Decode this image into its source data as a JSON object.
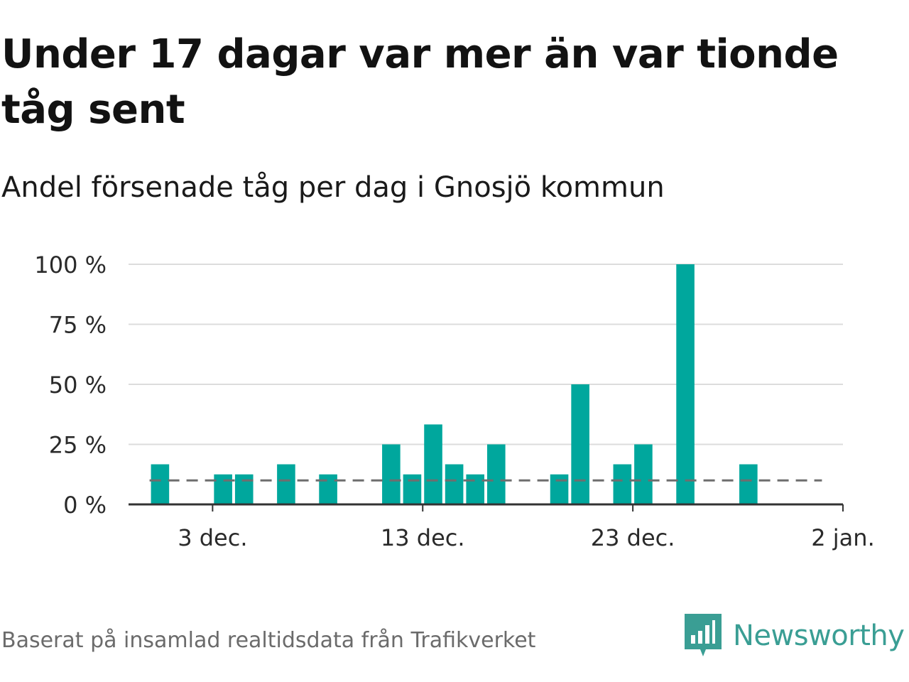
{
  "title": "Under 17 dagar var mer än var tionde tåg sent",
  "subtitle": "Andel försenade tåg per dag i Gnosjö kommun",
  "footer": {
    "source": "Baserat på insamlad realtidsdata från Trafikverket",
    "brand": "Newsworthy"
  },
  "colors": {
    "bar": "#00a79d",
    "reference_line": "#6e6e6e",
    "grid": "#dcdcdc",
    "axis": "#333333",
    "brand": "#3a9e94"
  },
  "icons": {
    "brand_logo": "newsworthy-logo-icon"
  },
  "chart_data": {
    "type": "bar",
    "title": "Under 17 dagar var mer än var tionde tåg sent",
    "subtitle": "Andel försenade tåg per dag i Gnosjö kommun",
    "xlabel": "",
    "ylabel": "",
    "x": [
      "2024-11-30",
      "2024-12-03",
      "2024-12-04",
      "2024-12-06",
      "2024-12-08",
      "2024-12-11",
      "2024-12-12",
      "2024-12-13",
      "2024-12-14",
      "2024-12-15",
      "2024-12-16",
      "2024-12-19",
      "2024-12-20",
      "2024-12-22",
      "2024-12-23",
      "2024-12-25",
      "2024-12-28"
    ],
    "values": [
      16.7,
      12.5,
      12.5,
      16.7,
      12.5,
      25,
      12.5,
      33.3,
      16.7,
      12.5,
      25,
      12.5,
      50,
      16.7,
      25,
      100,
      16.7
    ],
    "ylim": [
      0,
      100
    ],
    "yticks": [
      0,
      25,
      50,
      75,
      100
    ],
    "ytick_labels": [
      "0 %",
      "25 %",
      "50 %",
      "75 %",
      "100 %"
    ],
    "xlim": [
      "2024-11-29",
      "2025-01-02"
    ],
    "xticks": [
      "2024-12-03",
      "2024-12-13",
      "2024-12-23",
      "2025-01-02"
    ],
    "xtick_labels": [
      "3 dec.",
      "13 dec.",
      "23 dec.",
      "2 jan."
    ],
    "reference_line": {
      "value": 10,
      "style": "dashed",
      "from": "2024-11-30",
      "to": "2024-12-31"
    },
    "grid": true,
    "legend": "none"
  }
}
